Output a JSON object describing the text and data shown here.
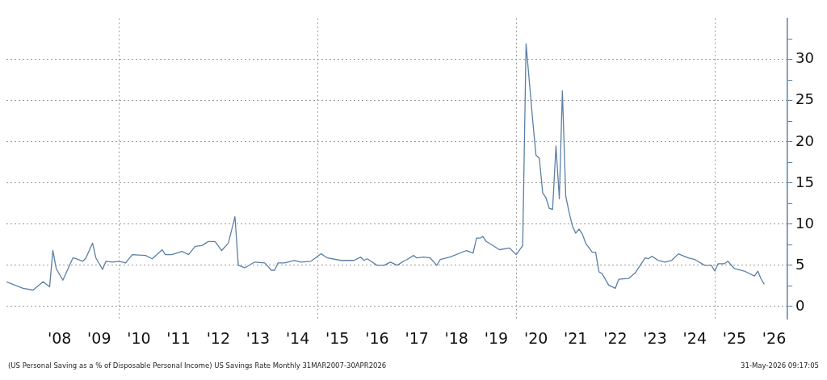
{
  "chart_data": {
    "type": "line",
    "x": [
      "2007-03",
      "2007-08",
      "2007-11",
      "2008-02",
      "2008-04",
      "2008-05",
      "2008-06",
      "2008-08",
      "2008-11",
      "2008-12",
      "2009-02",
      "2009-03",
      "2009-05",
      "2009-06",
      "2009-08",
      "2009-09",
      "2009-11",
      "2010-01",
      "2010-03",
      "2010-05",
      "2010-09",
      "2010-11",
      "2011-02",
      "2011-03",
      "2011-05",
      "2011-08",
      "2011-10",
      "2011-12",
      "2012-02",
      "2012-04",
      "2012-06",
      "2012-08",
      "2012-10",
      "2012-12",
      "2013-01",
      "2013-03",
      "2013-06",
      "2013-09",
      "2013-11",
      "2013-12",
      "2014-01",
      "2014-03",
      "2014-06",
      "2014-08",
      "2014-11",
      "2015-02",
      "2015-04",
      "2015-08",
      "2015-12",
      "2016-02",
      "2016-03",
      "2016-04",
      "2016-07",
      "2016-09",
      "2016-11",
      "2017-01",
      "2017-03",
      "2017-04",
      "2017-06",
      "2017-07",
      "2017-09",
      "2017-11",
      "2018-01",
      "2018-02",
      "2018-05",
      "2018-10",
      "2018-12",
      "2019-01",
      "2019-02",
      "2019-03",
      "2019-04",
      "2019-08",
      "2019-11",
      "2020-01",
      "2020-03",
      "2020-04",
      "2020-06",
      "2020-07",
      "2020-08",
      "2020-09",
      "2020-10",
      "2020-11",
      "2020-12",
      "2021-01",
      "2021-02",
      "2021-03",
      "2021-04",
      "2021-05",
      "2021-06",
      "2021-07",
      "2021-08",
      "2021-09",
      "2021-10",
      "2021-12",
      "2022-01",
      "2022-02",
      "2022-03",
      "2022-05",
      "2022-06",
      "2022-07",
      "2022-08",
      "2022-11",
      "2023-01",
      "2023-04",
      "2023-05",
      "2023-06",
      "2023-08",
      "2023-10",
      "2023-12",
      "2024-02",
      "2024-05",
      "2024-07",
      "2024-10",
      "2024-12",
      "2025-01",
      "2025-02",
      "2025-04",
      "2025-05",
      "2025-07",
      "2025-10",
      "2026-01",
      "2026-02",
      "2026-03",
      "2026-04"
    ],
    "series": [
      {
        "color": "#5b7fa6",
        "values": [
          3.0,
          2.2,
          2.0,
          3.0,
          2.4,
          6.8,
          4.6,
          3.2,
          5.9,
          5.8,
          5.5,
          5.9,
          7.7,
          5.9,
          4.5,
          5.5,
          5.4,
          5.5,
          5.3,
          6.3,
          6.2,
          5.8,
          6.9,
          6.3,
          6.3,
          6.7,
          6.3,
          7.3,
          7.4,
          7.9,
          7.9,
          6.8,
          7.7,
          10.9,
          5.0,
          4.7,
          5.4,
          5.3,
          4.4,
          4.4,
          5.3,
          5.3,
          5.6,
          5.4,
          5.5,
          6.4,
          5.9,
          5.6,
          5.6,
          6.0,
          5.6,
          5.8,
          5.0,
          5.0,
          5.4,
          5.0,
          5.5,
          5.7,
          6.2,
          5.9,
          6.0,
          5.9,
          5.0,
          5.7,
          6.0,
          6.8,
          6.5,
          8.3,
          8.3,
          8.5,
          7.9,
          6.9,
          7.1,
          6.3,
          7.4,
          31.9,
          22.6,
          18.4,
          18.0,
          13.8,
          13.2,
          11.9,
          11.8,
          19.5,
          13.1,
          26.2,
          13.4,
          11.5,
          9.8,
          8.9,
          9.4,
          8.8,
          7.7,
          6.6,
          6.6,
          4.2,
          4.0,
          2.6,
          2.4,
          2.2,
          3.3,
          3.4,
          4.1,
          5.9,
          5.8,
          6.1,
          5.6,
          5.4,
          5.6,
          6.4,
          5.9,
          5.7,
          5.0,
          5.0,
          4.3,
          5.2,
          5.2,
          5.5,
          4.6,
          4.3,
          3.7,
          4.3,
          3.4,
          2.7
        ]
      }
    ],
    "xlim": [
      "2007-03",
      "2026-11"
    ],
    "xticks": [
      {
        "value": "2008-07",
        "label": "'08"
      },
      {
        "value": "2009-07",
        "label": "'09"
      },
      {
        "value": "2010-01",
        "label": null
      },
      {
        "value": "2010-07",
        "label": "'10"
      },
      {
        "value": "2011-07",
        "label": "'11"
      },
      {
        "value": "2012-07",
        "label": "'12"
      },
      {
        "value": "2013-07",
        "label": "'13"
      },
      {
        "value": "2014-07",
        "label": "'14"
      },
      {
        "value": "2015-01",
        "label": null
      },
      {
        "value": "2015-07",
        "label": "'15"
      },
      {
        "value": "2016-07",
        "label": "'16"
      },
      {
        "value": "2017-07",
        "label": "'17"
      },
      {
        "value": "2018-07",
        "label": "'18"
      },
      {
        "value": "2019-07",
        "label": "'19"
      },
      {
        "value": "2020-01",
        "label": null
      },
      {
        "value": "2020-07",
        "label": "'20"
      },
      {
        "value": "2021-07",
        "label": "'21"
      },
      {
        "value": "2022-07",
        "label": "'22"
      },
      {
        "value": "2023-07",
        "label": "'23"
      },
      {
        "value": "2024-07",
        "label": "'24"
      },
      {
        "value": "2025-01",
        "label": null
      },
      {
        "value": "2025-07",
        "label": "'25"
      },
      {
        "value": "2026-07",
        "label": "'26"
      }
    ],
    "ylim": [
      -1.5,
      35
    ],
    "yticks": [
      0,
      {
        "value": 2.5,
        "label": null
      },
      5,
      {
        "value": 7.5,
        "label": null
      },
      10,
      {
        "value": 12.5,
        "label": null
      },
      15,
      {
        "value": 17.5,
        "label": null
      },
      20,
      {
        "value": 22.5,
        "label": null
      },
      25,
      {
        "value": 27.5,
        "label": null
      },
      30,
      {
        "value": 32.5,
        "label": null
      }
    ],
    "grid": true,
    "legend": false,
    "marker": "none",
    "line_style": "solid",
    "annotations": [
      "(US Personal Saving as a % of Disposable Personal Income) US Savings Rate Monthly 31MAR2007-30APR2026",
      "31-May-2026 09:17:05"
    ]
  }
}
